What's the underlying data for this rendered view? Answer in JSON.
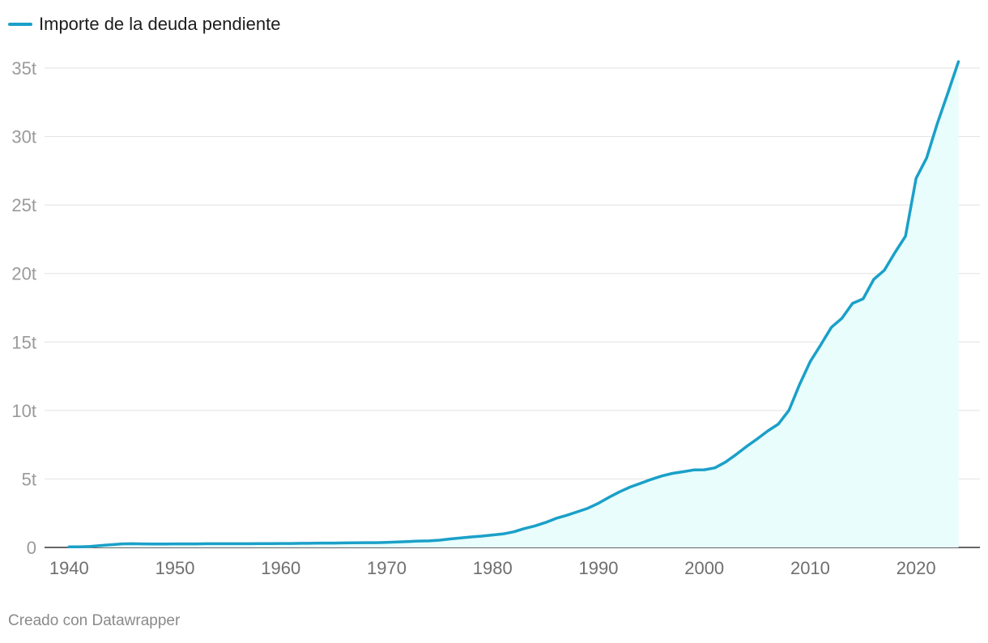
{
  "chart_data": {
    "type": "area",
    "series": [
      {
        "name": "Importe de la deuda pendiente",
        "color": "#1aa0c8",
        "fill": "#e8fdfc",
        "x": [
          1940,
          1941,
          1942,
          1943,
          1944,
          1945,
          1946,
          1947,
          1948,
          1949,
          1950,
          1951,
          1952,
          1953,
          1954,
          1955,
          1956,
          1957,
          1958,
          1959,
          1960,
          1961,
          1962,
          1963,
          1964,
          1965,
          1966,
          1967,
          1968,
          1969,
          1970,
          1971,
          1972,
          1973,
          1974,
          1975,
          1976,
          1977,
          1978,
          1979,
          1980,
          1981,
          1982,
          1983,
          1984,
          1985,
          1986,
          1987,
          1988,
          1989,
          1990,
          1991,
          1992,
          1993,
          1994,
          1995,
          1996,
          1997,
          1998,
          1999,
          2000,
          2001,
          2002,
          2003,
          2004,
          2005,
          2006,
          2007,
          2008,
          2009,
          2010,
          2011,
          2012,
          2013,
          2014,
          2015,
          2016,
          2017,
          2018,
          2019,
          2020,
          2021,
          2022,
          2023,
          2024
        ],
        "values": [
          0.04,
          0.05,
          0.07,
          0.14,
          0.2,
          0.26,
          0.27,
          0.26,
          0.25,
          0.25,
          0.26,
          0.26,
          0.26,
          0.27,
          0.27,
          0.27,
          0.27,
          0.27,
          0.28,
          0.28,
          0.29,
          0.29,
          0.3,
          0.31,
          0.32,
          0.32,
          0.33,
          0.34,
          0.35,
          0.35,
          0.37,
          0.4,
          0.43,
          0.47,
          0.48,
          0.53,
          0.62,
          0.7,
          0.77,
          0.83,
          0.91,
          0.99,
          1.14,
          1.38,
          1.57,
          1.82,
          2.12,
          2.35,
          2.6,
          2.86,
          3.23,
          3.66,
          4.06,
          4.41,
          4.69,
          4.97,
          5.22,
          5.41,
          5.53,
          5.66,
          5.67,
          5.81,
          6.23,
          6.78,
          7.38,
          7.93,
          8.51,
          9.01,
          10.02,
          11.91,
          13.56,
          14.79,
          16.07,
          16.74,
          17.82,
          18.15,
          19.57,
          20.24,
          21.52,
          22.72,
          26.95,
          28.43,
          30.93,
          33.17,
          35.46
        ]
      }
    ],
    "y_ticks": [
      "0",
      "5t",
      "10t",
      "15t",
      "20t",
      "25t",
      "30t",
      "35t"
    ],
    "y_tick_values": [
      0,
      5,
      10,
      15,
      20,
      25,
      30,
      35
    ],
    "x_ticks": [
      "1940",
      "1950",
      "1960",
      "1970",
      "1980",
      "1990",
      "2000",
      "2010",
      "2020"
    ],
    "x_tick_values": [
      1940,
      1950,
      1960,
      1970,
      1980,
      1990,
      2000,
      2010,
      2020
    ],
    "xlim": [
      1939.9,
      2024.5
    ],
    "ylim": [
      0,
      35
    ],
    "grid": true,
    "legend": "top-left"
  },
  "footer": {
    "credit": "Creado con Datawrapper"
  }
}
